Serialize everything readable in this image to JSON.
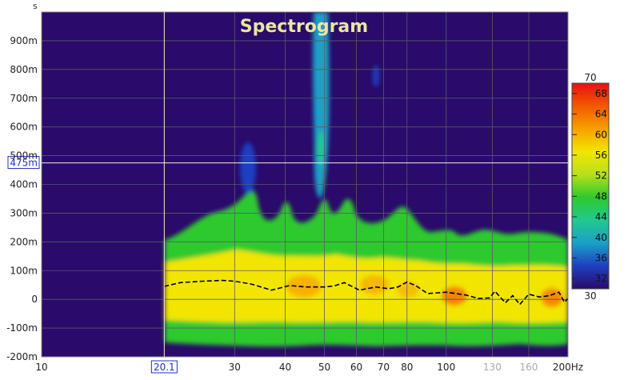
{
  "chart_data": {
    "type": "heatmap",
    "title": "Spectrogram",
    "y_unit_label": "s",
    "x_unit_label": "Hz",
    "x_scale": "log",
    "xlim": [
      10,
      200
    ],
    "ylim": [
      -0.2,
      1.0
    ],
    "x_ticks": [
      {
        "value": 10,
        "label": "10"
      },
      {
        "value": 30,
        "label": "30"
      },
      {
        "value": 40,
        "label": "40"
      },
      {
        "value": 50,
        "label": "50"
      },
      {
        "value": 60,
        "label": "60"
      },
      {
        "value": 70,
        "label": "70"
      },
      {
        "value": 80,
        "label": "80"
      },
      {
        "value": 100,
        "label": "100"
      },
      {
        "value": 130,
        "label": "130",
        "muted": true
      },
      {
        "value": 160,
        "label": "160",
        "muted": true
      },
      {
        "value": 200,
        "label": "200Hz"
      }
    ],
    "y_ticks": [
      {
        "value": 0.9,
        "label": "900m"
      },
      {
        "value": 0.8,
        "label": "800m"
      },
      {
        "value": 0.7,
        "label": "700m"
      },
      {
        "value": 0.6,
        "label": "600m"
      },
      {
        "value": 0.5,
        "label": "500m"
      },
      {
        "value": 0.4,
        "label": "400m"
      },
      {
        "value": 0.3,
        "label": "300m"
      },
      {
        "value": 0.2,
        "label": "200m"
      },
      {
        "value": 0.1,
        "label": "100m"
      },
      {
        "value": 0.0,
        "label": "0"
      },
      {
        "value": -0.1,
        "label": "-100m"
      },
      {
        "value": -0.2,
        "label": "-200m"
      }
    ],
    "cursor": {
      "x": 20.1,
      "y": 0.475,
      "x_label": "20.1",
      "y_label": "475m"
    },
    "colorbar": {
      "min": 30,
      "max": 70,
      "min_label": "30",
      "max_label": "70",
      "ticks": [
        32,
        36,
        40,
        44,
        48,
        52,
        56,
        60,
        64,
        68
      ],
      "colors": [
        "#2a0a6a",
        "#1f3fbf",
        "#1aa0c8",
        "#22c890",
        "#2ec92e",
        "#b8e01a",
        "#f2e600",
        "#f7a000",
        "#f25a00",
        "#e81010"
      ]
    },
    "background_color": "#2a0a6a",
    "ridge_line": [
      {
        "x": 20.1,
        "y": 0.045
      },
      {
        "x": 22,
        "y": 0.058
      },
      {
        "x": 25,
        "y": 0.063
      },
      {
        "x": 28,
        "y": 0.066
      },
      {
        "x": 30,
        "y": 0.063
      },
      {
        "x": 33,
        "y": 0.053
      },
      {
        "x": 37,
        "y": 0.032
      },
      {
        "x": 41,
        "y": 0.048
      },
      {
        "x": 45,
        "y": 0.043
      },
      {
        "x": 50,
        "y": 0.043
      },
      {
        "x": 53,
        "y": 0.047
      },
      {
        "x": 56,
        "y": 0.058
      },
      {
        "x": 61,
        "y": 0.032
      },
      {
        "x": 67,
        "y": 0.043
      },
      {
        "x": 72,
        "y": 0.037
      },
      {
        "x": 76,
        "y": 0.043
      },
      {
        "x": 80,
        "y": 0.06
      },
      {
        "x": 84,
        "y": 0.048
      },
      {
        "x": 90,
        "y": 0.02
      },
      {
        "x": 100,
        "y": 0.025
      },
      {
        "x": 112,
        "y": 0.015
      },
      {
        "x": 120,
        "y": 0.003
      },
      {
        "x": 128,
        "y": 0.005
      },
      {
        "x": 132,
        "y": 0.028
      },
      {
        "x": 140,
        "y": -0.012
      },
      {
        "x": 146,
        "y": 0.013
      },
      {
        "x": 152,
        "y": -0.018
      },
      {
        "x": 160,
        "y": 0.018
      },
      {
        "x": 170,
        "y": 0.008
      },
      {
        "x": 180,
        "y": 0.013
      },
      {
        "x": 190,
        "y": 0.025
      },
      {
        "x": 196,
        "y": -0.01
      },
      {
        "x": 200,
        "y": 0.003
      }
    ]
  }
}
